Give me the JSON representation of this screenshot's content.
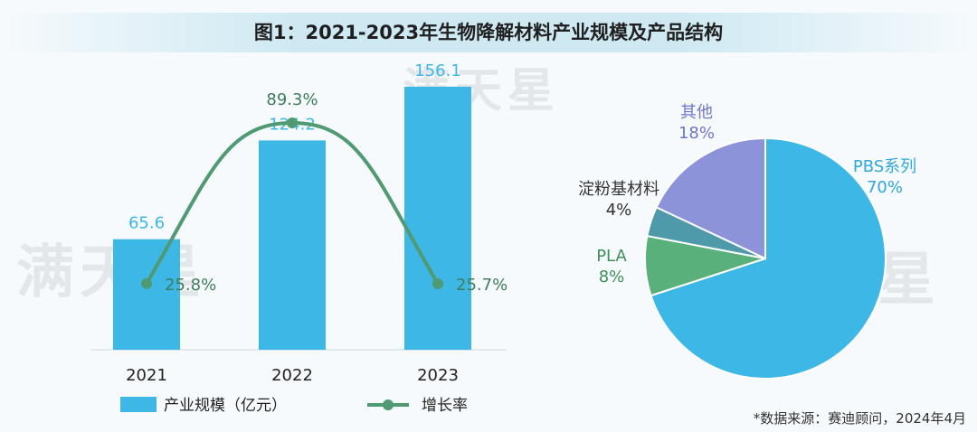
{
  "title": "图1：2021-2023年生物降解材料产业规模及产品结构",
  "source": "*数据来源：赛迪顾问，2024年4月",
  "watermark": "满天星",
  "chart_data": [
    {
      "type": "bar",
      "categories": [
        "2021",
        "2022",
        "2023"
      ],
      "series": [
        {
          "name": "产业规模（亿元）",
          "values": [
            65.6,
            124.2,
            156.1
          ],
          "labels": [
            "65.6",
            "124.2",
            "156.1"
          ],
          "color": "#3db8e6"
        }
      ],
      "ylim": [
        0,
        170
      ],
      "legend": "bottom"
    },
    {
      "type": "line",
      "categories": [
        "2021",
        "2022",
        "2023"
      ],
      "series": [
        {
          "name": "增长率",
          "values": [
            25.8,
            89.3,
            25.7
          ],
          "labels": [
            "25.8%",
            "89.3%",
            "25.7%"
          ],
          "color": "#4f9a72"
        }
      ],
      "ylim": [
        0,
        100
      ]
    },
    {
      "type": "pie",
      "slices": [
        {
          "name": "PBS系列",
          "value": 70,
          "label": "70%",
          "color": "#3db8e6",
          "label_color": "#2fa8d8"
        },
        {
          "name": "PLA",
          "value": 8,
          "label": "8%",
          "color": "#5ab07a",
          "label_color": "#3e8e5a"
        },
        {
          "name": "淀粉基材料",
          "value": 4,
          "label": "4%",
          "color": "#4f9aaa",
          "label_color": "#333333"
        },
        {
          "name": "其他",
          "value": 18,
          "label": "18%",
          "color": "#8d93d8",
          "label_color": "#6f76c9"
        }
      ]
    }
  ]
}
